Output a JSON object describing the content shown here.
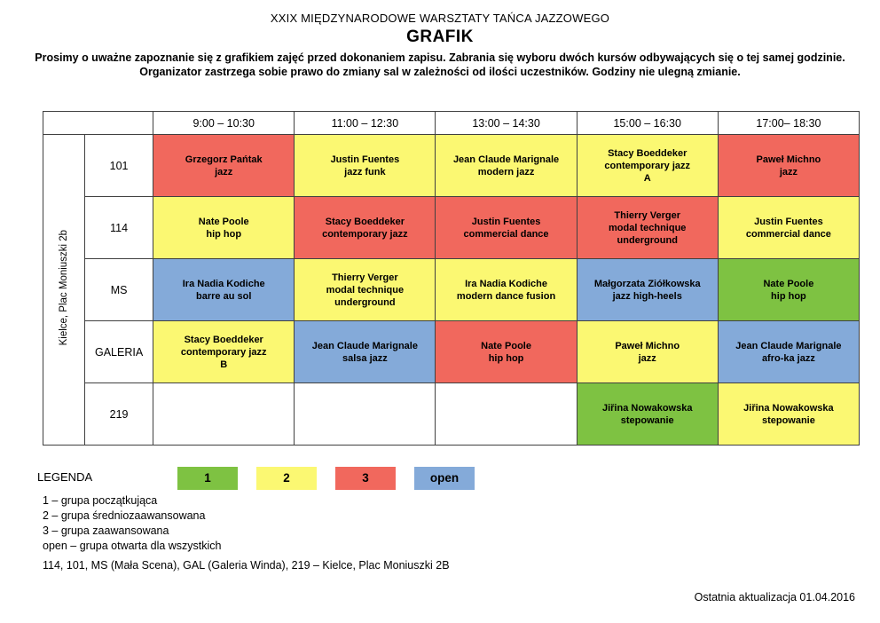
{
  "page": {
    "title": "XXIX MIĘDZYNARODOWE WARSZTATY TAŃCA JAZZOWEGO",
    "subtitle": "GRAFIK",
    "instructions": [
      "Prosimy o uważne zapoznanie się z grafikiem zajęć przed dokonaniem zapisu. Zabrania się wyboru dwóch kursów odbywających się o tej samej godzinie.",
      "Organizator zastrzega sobie prawo do zmiany sal w zależności od ilości uczestników. Godziny nie ulegną zmianie."
    ],
    "rooms_note": "114, 101, MS (Mała Scena), GAL (Galeria Winda), 219 – Kielce, Plac Moniuszki 2B",
    "footer": "Ostatnia aktualizacja 01.04.2016"
  },
  "colors": {
    "1": "#7EC242",
    "2": "#FBF872",
    "3": "#F1685D",
    "open": "#84AAD9",
    "empty": "#FFFFFF",
    "border": "#404040"
  },
  "schedule": {
    "venue_label": "Kielce, Plac Moniuszki 2b",
    "time_headers": [
      "9:00 – 10:30",
      "11:00 – 12:30",
      "13:00 – 14:30",
      "15:00 – 16:30",
      "17:00– 18:30"
    ],
    "rows": [
      {
        "room": "101",
        "cells": [
          {
            "lines": [
              "Grzegorz Pańtak",
              "jazz"
            ],
            "level": "3"
          },
          {
            "lines": [
              "Justin Fuentes",
              "jazz funk"
            ],
            "level": "2"
          },
          {
            "lines": [
              "Jean Claude Marignale",
              "modern jazz"
            ],
            "level": "2"
          },
          {
            "lines": [
              "Stacy Boeddeker",
              "contemporary jazz",
              "A"
            ],
            "level": "2"
          },
          {
            "lines": [
              "Paweł Michno",
              "jazz"
            ],
            "level": "3"
          }
        ]
      },
      {
        "room": "114",
        "cells": [
          {
            "lines": [
              "Nate Poole",
              "hip hop"
            ],
            "level": "2"
          },
          {
            "lines": [
              "Stacy Boeddeker",
              "contemporary jazz"
            ],
            "level": "3"
          },
          {
            "lines": [
              "Justin Fuentes",
              "commercial dance"
            ],
            "level": "3"
          },
          {
            "lines": [
              "Thierry Verger",
              "modal technique",
              "underground"
            ],
            "level": "3"
          },
          {
            "lines": [
              "Justin Fuentes",
              "commercial dance"
            ],
            "level": "2"
          }
        ]
      },
      {
        "room": "MS",
        "cells": [
          {
            "lines": [
              "Ira Nadia Kodiche",
              "barre au sol"
            ],
            "level": "open"
          },
          {
            "lines": [
              "Thierry Verger",
              "modal technique",
              "underground"
            ],
            "level": "2"
          },
          {
            "lines": [
              "Ira Nadia Kodiche",
              "modern dance fusion"
            ],
            "level": "2"
          },
          {
            "lines": [
              "Małgorzata Ziółkowska",
              "jazz high-heels"
            ],
            "level": "open"
          },
          {
            "lines": [
              "Nate Poole",
              "hip hop"
            ],
            "level": "1"
          }
        ]
      },
      {
        "room": "GALERIA",
        "cells": [
          {
            "lines": [
              "Stacy Boeddeker",
              "contemporary jazz",
              "B"
            ],
            "level": "2"
          },
          {
            "lines": [
              "Jean Claude Marignale",
              "salsa jazz"
            ],
            "level": "open"
          },
          {
            "lines": [
              "Nate Poole",
              "hip hop"
            ],
            "level": "3"
          },
          {
            "lines": [
              "Paweł Michno",
              "jazz"
            ],
            "level": "2"
          },
          {
            "lines": [
              "Jean Claude Marignale",
              "afro-ka jazz"
            ],
            "level": "open"
          }
        ]
      },
      {
        "room": "219",
        "cells": [
          {
            "lines": [],
            "level": null
          },
          {
            "lines": [],
            "level": null
          },
          {
            "lines": [],
            "level": null
          },
          {
            "lines": [
              "Jiřina Nowakowska",
              "stepowanie"
            ],
            "level": "1"
          },
          {
            "lines": [
              "Jiřina Nowakowska",
              "stepowanie"
            ],
            "level": "2"
          }
        ]
      }
    ]
  },
  "legend": {
    "heading": "LEGENDA",
    "boxes": [
      {
        "label": "1",
        "level": "1"
      },
      {
        "label": "2",
        "level": "2"
      },
      {
        "label": "3",
        "level": "3"
      },
      {
        "label": "open",
        "level": "open"
      }
    ],
    "items": [
      "1 – grupa początkująca",
      "2 – grupa średniozaawansowana",
      "3 – grupa zaawansowana",
      "open – grupa otwarta dla wszystkich"
    ]
  }
}
